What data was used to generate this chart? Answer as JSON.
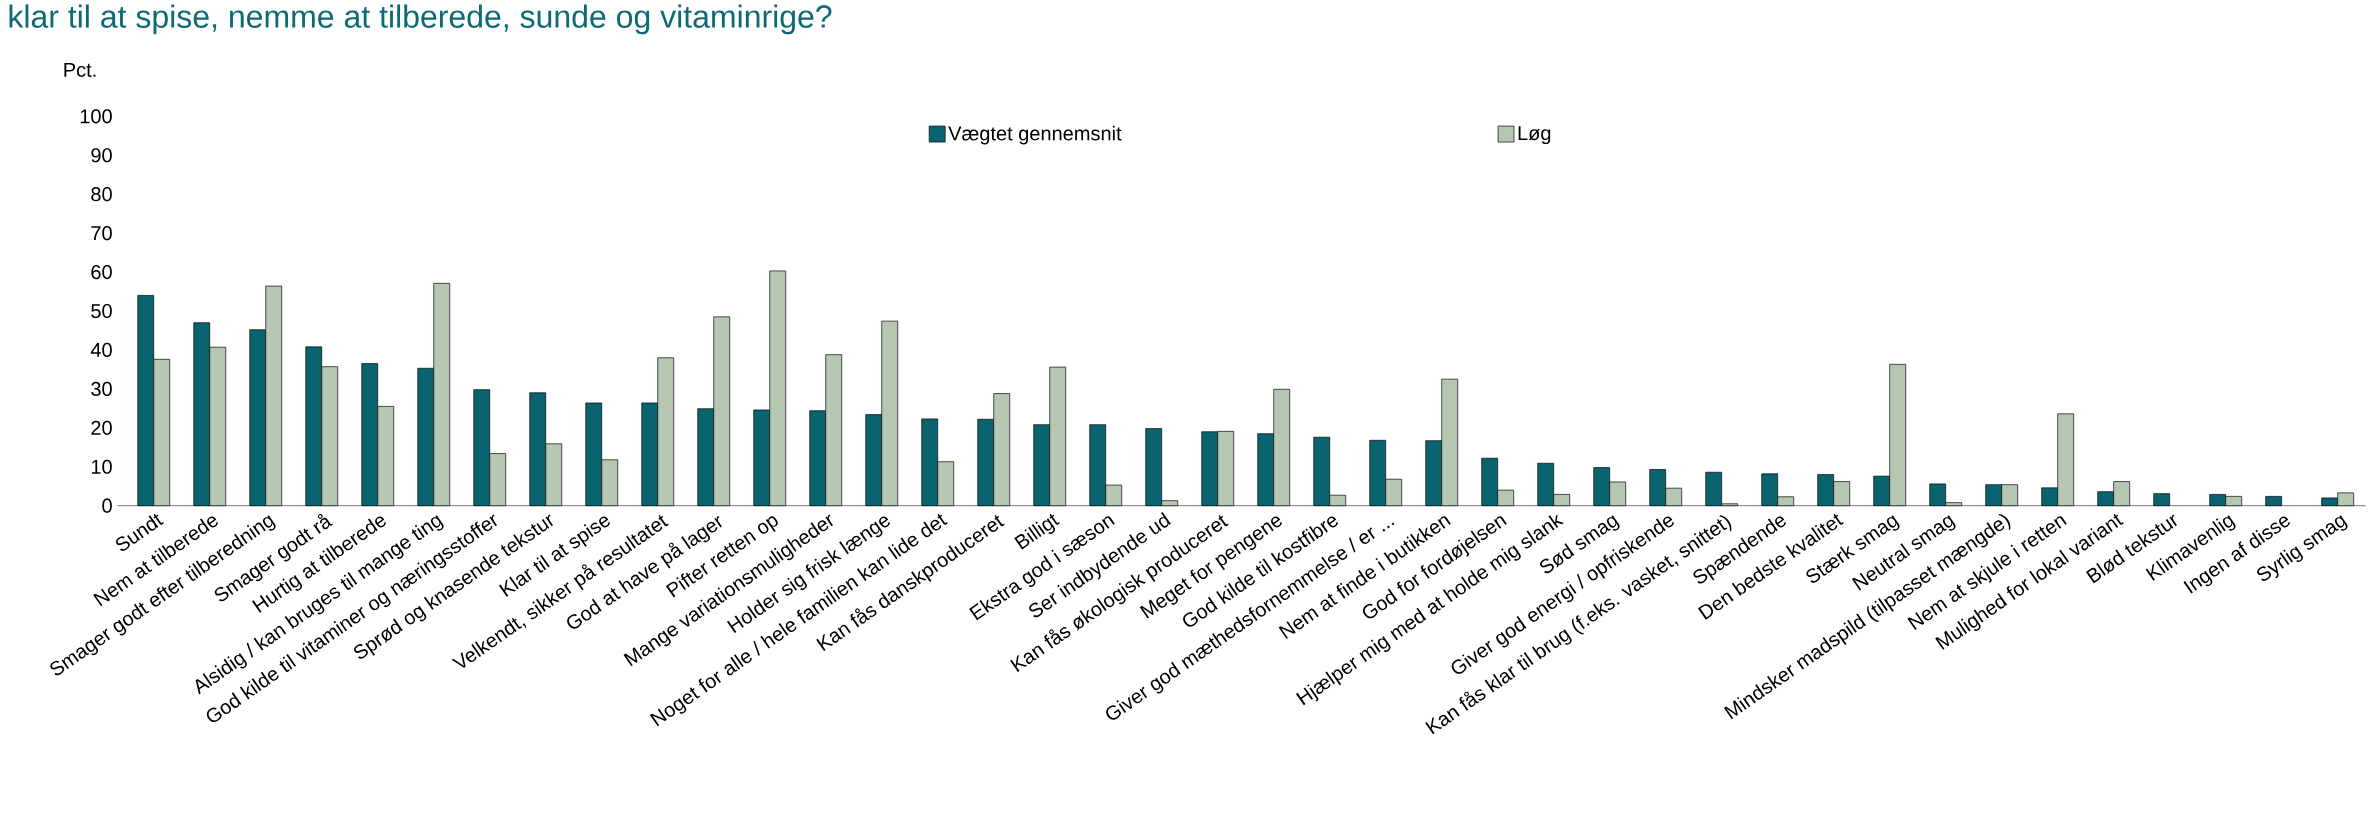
{
  "chart_data": {
    "type": "bar",
    "title": "klar til at spise, nemme at tilberede, sunde og vitaminrige?",
    "ylabel": "Pct.",
    "categories": [
      "Sundt",
      "Nem at tilberede",
      "Smager godt efter tilberedning",
      "Smager godt rå",
      "Hurtig at tilberede",
      "Alsidig / kan bruges til mange ting",
      "God kilde til vitaminer og næringsstoffer",
      "Sprød og knasende tekstur",
      "Klar til at spise",
      "Velkendt, sikker på resultatet",
      "God at have på lager",
      "Pifter retten op",
      "Mange variationsmuligheder",
      "Holder sig frisk længe",
      "Noget for alle / hele familien kan lide det",
      "Kan fås danskproduceret",
      "Billigt",
      "Ekstra god i sæson",
      "Ser indbydende ud",
      "Kan fås økologisk produceret",
      "Meget for pengene",
      "God kilde til kostfibre",
      "Giver god mæthedsfornemmelse / er ...",
      "Nem at finde i butikken",
      "God for fordøjelsen",
      "Hjælper mig med at holde mig slank",
      "Sød smag",
      "Giver god energi / opfriskende",
      "Kan fås klar til brug (f.eks. vasket, snittet)",
      "Spændende",
      "Den bedste kvalitet",
      "Stærk smag",
      "Neutral smag",
      "Mindsker madspild (tilpasset mængde)",
      "Nem at skjule i retten",
      "Mulighed for lokal variant",
      "Blød tekstur",
      "Klimavenlig",
      "Ingen af disse",
      "Syrlig smag"
    ],
    "series": [
      {
        "name": "Vægtet gennemsnit",
        "color": "#0a6470",
        "values": [
          54.0,
          47.0,
          45.2,
          40.8,
          36.5,
          35.3,
          29.8,
          29.0,
          26.4,
          26.4,
          24.9,
          24.6,
          24.4,
          23.4,
          22.3,
          22.2,
          20.8,
          20.8,
          19.8,
          19.0,
          18.5,
          17.6,
          16.8,
          16.7,
          12.2,
          10.9,
          9.8,
          9.3,
          8.6,
          8.2,
          8.0,
          7.6,
          5.6,
          5.4,
          4.6,
          3.6,
          3.1,
          2.9,
          2.4,
          2.0
        ]
      },
      {
        "name": "Løg",
        "color": "#b5c7b0",
        "values": [
          37.6,
          40.7,
          56.4,
          35.7,
          25.5,
          57.1,
          13.4,
          15.9,
          11.8,
          38.0,
          48.5,
          60.3,
          38.8,
          47.4,
          11.3,
          28.8,
          35.6,
          5.3,
          1.3,
          19.1,
          29.9,
          2.7,
          6.8,
          32.5,
          4.0,
          2.9,
          6.1,
          4.5,
          0.5,
          2.3,
          6.2,
          36.3,
          0.8,
          5.4,
          23.6,
          6.2,
          null,
          2.4,
          null,
          3.3
        ]
      }
    ],
    "ylim": [
      0,
      100
    ],
    "yticks": [
      0,
      10,
      20,
      30,
      40,
      50,
      60,
      70,
      80,
      90,
      100
    ],
    "legend": "top"
  }
}
